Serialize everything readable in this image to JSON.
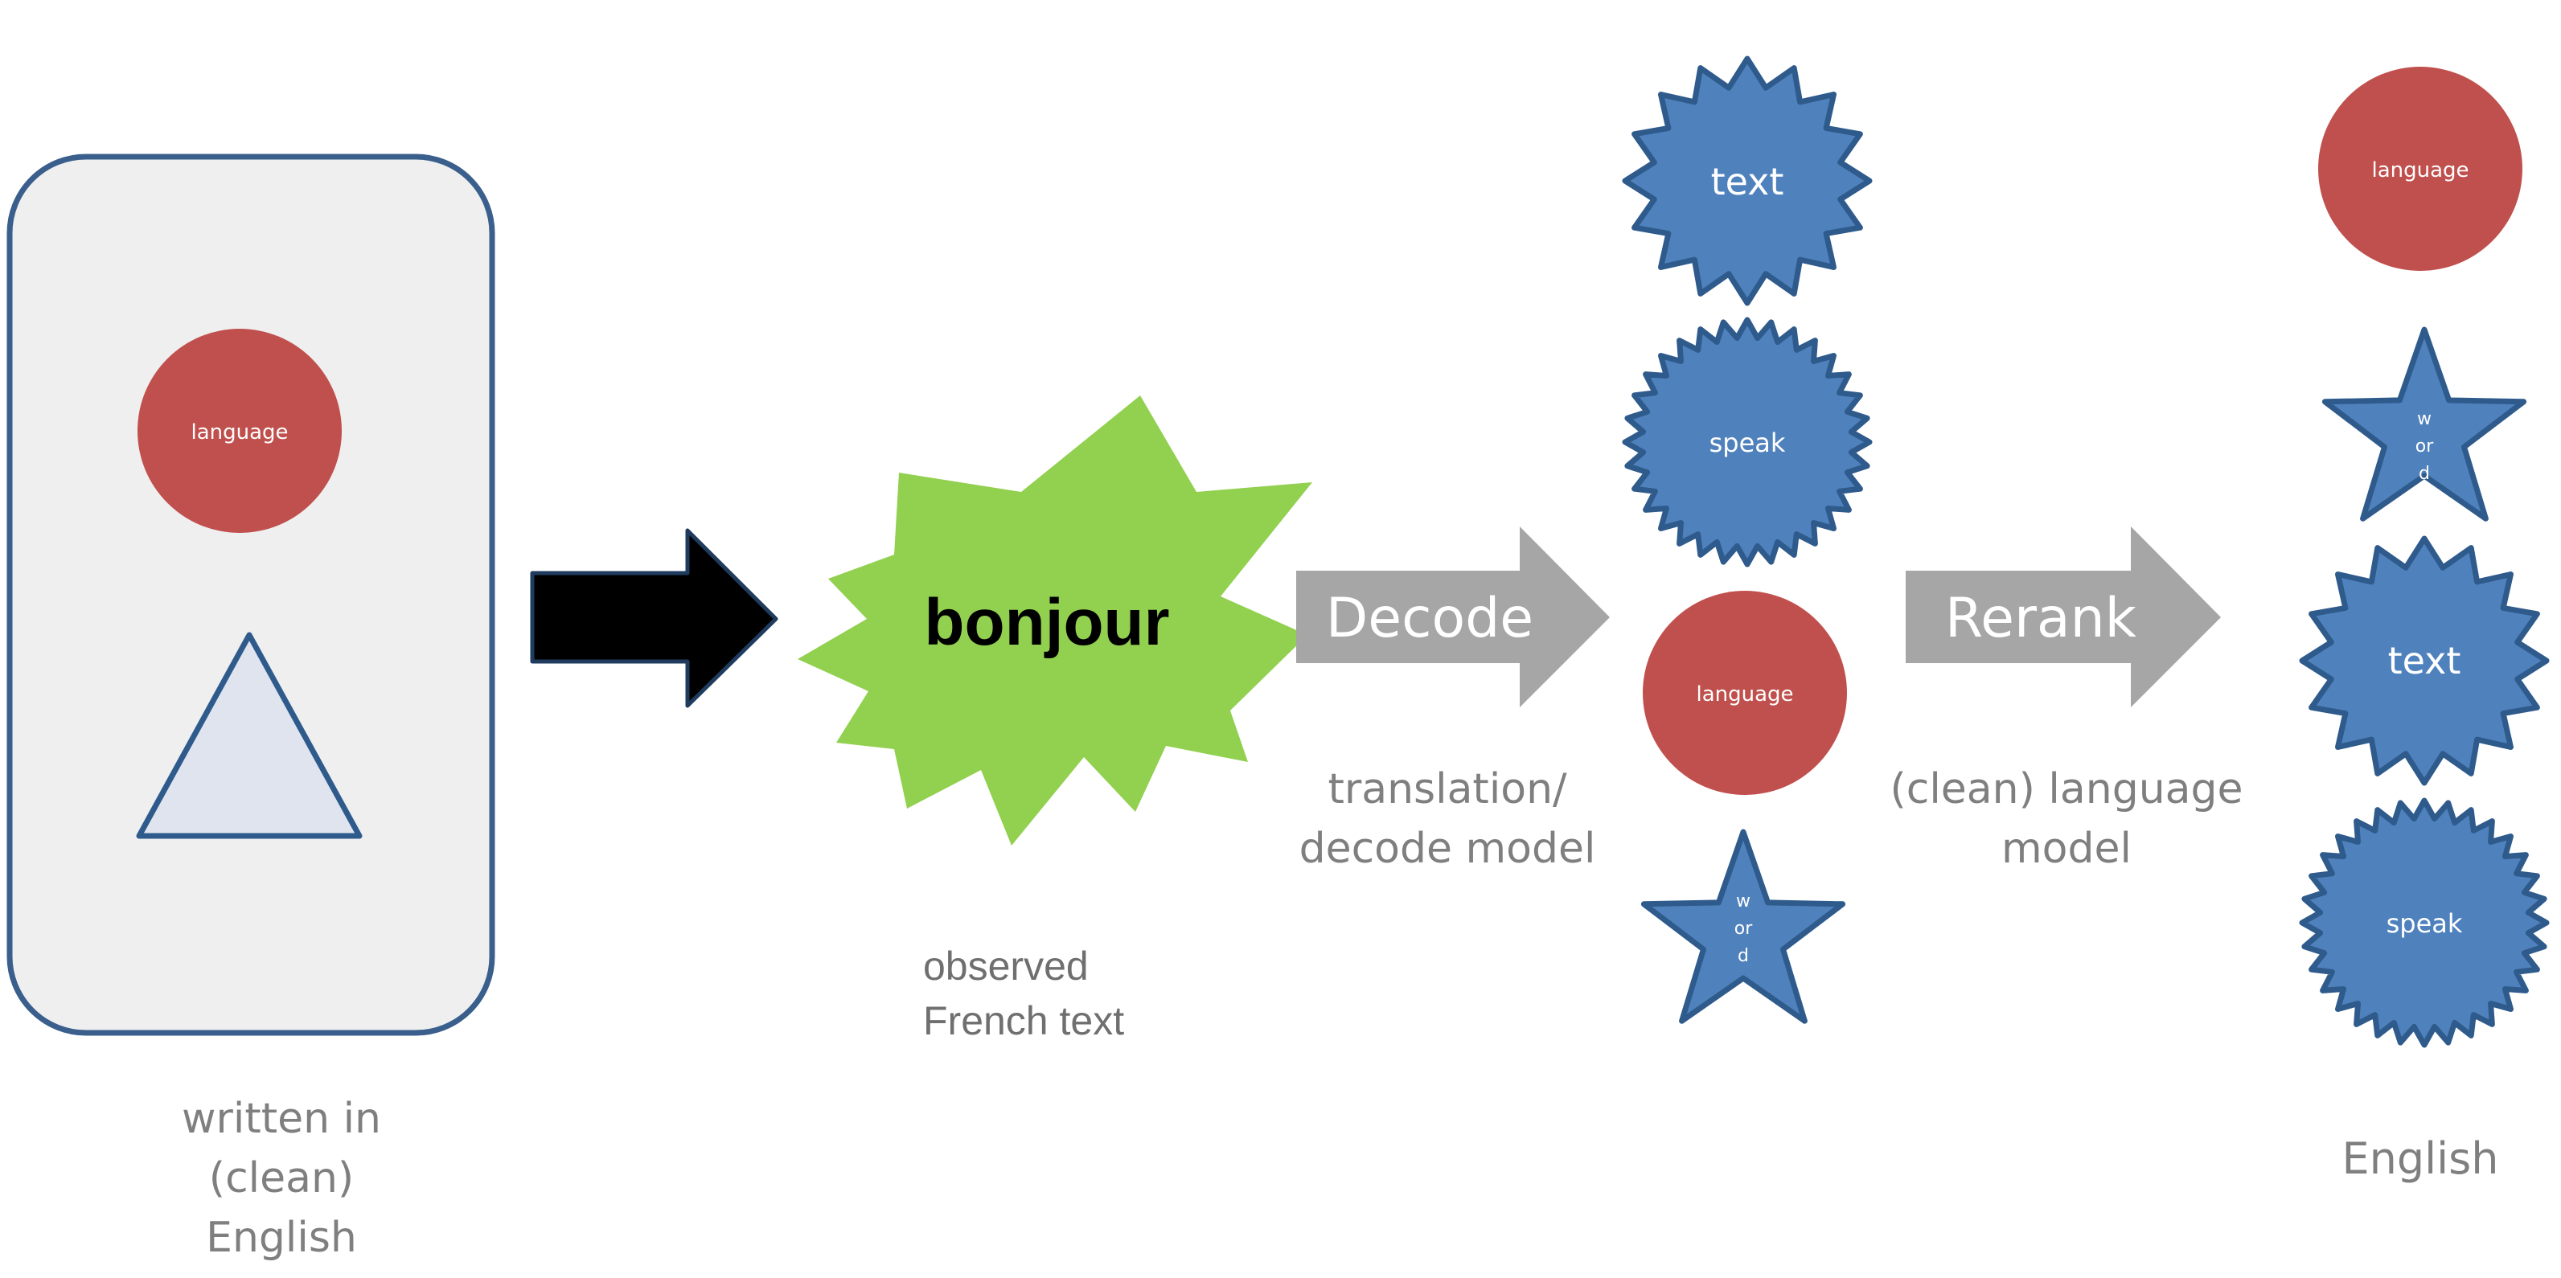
{
  "diagram": {
    "colors": {
      "panel_fill": "#efefef",
      "panel_stroke": "#3a5f8c",
      "circle_red": "#c0504d",
      "shape_blue": "#4f81bd",
      "shape_blue_stroke": "#2f5b8c",
      "triangle_fill": "#dfe4ee",
      "burst_green": "#92d050",
      "arrow_black": "#000000",
      "arrow_gray": "#a6a6a6",
      "caption_gray": "#7f7f7f"
    },
    "source_panel": {
      "circle_label": "language",
      "caption_lines": [
        "written in",
        "(clean)",
        "English"
      ]
    },
    "observed": {
      "burst_text": "bonjour",
      "caption_lines": [
        "observed",
        "French text"
      ]
    },
    "decode_step": {
      "arrow_label": "Decode",
      "caption_lines": [
        "translation/",
        "decode model"
      ]
    },
    "candidates": [
      {
        "shape": "burst",
        "label": "text"
      },
      {
        "shape": "seal",
        "label": "speak"
      },
      {
        "shape": "circle",
        "label": "language"
      },
      {
        "shape": "star",
        "label_lines": [
          "w",
          "or",
          "d"
        ]
      }
    ],
    "rerank_step": {
      "arrow_label": "Rerank",
      "caption_lines": [
        "(clean) language",
        "model"
      ]
    },
    "ranked_output": {
      "items": [
        {
          "shape": "circle",
          "label": "language"
        },
        {
          "shape": "star",
          "label_lines": [
            "w",
            "or",
            "d"
          ]
        },
        {
          "shape": "burst",
          "label": "text"
        },
        {
          "shape": "seal",
          "label": "speak"
        }
      ],
      "caption": "English"
    }
  }
}
